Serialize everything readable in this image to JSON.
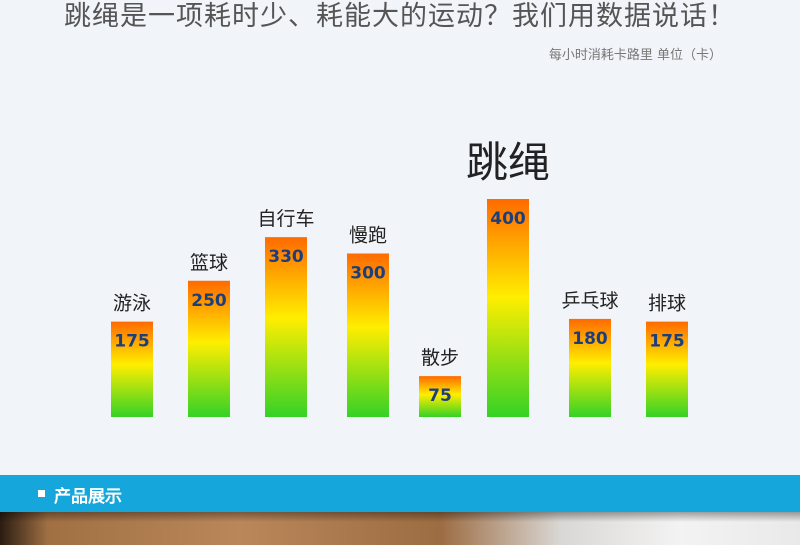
{
  "headline": "跳绳是一项耗时少、耗能大的运动？我们用数据说话！",
  "colors": {
    "bar_top": "#ff6a00",
    "bar_mid": "#ffee00",
    "bar_bottom": "#34d226",
    "value_text": "#1c3f7c",
    "highlight_label": "#ee1111",
    "section_bar": "#15a6dc"
  },
  "chart_data": {
    "type": "bar",
    "ylabel": "每小时消耗卡路里 单位（卡）",
    "categories": [
      "游泳",
      "篮球",
      "自行车",
      "慢跑",
      "散步",
      "跳绳",
      "乒乓球",
      "排球"
    ],
    "values": [
      175,
      250,
      330,
      300,
      75,
      400,
      180,
      175
    ],
    "highlight_category": "跳绳",
    "data_labels": true,
    "grid": false,
    "legend": "none"
  },
  "section": {
    "title": "产品展示"
  }
}
